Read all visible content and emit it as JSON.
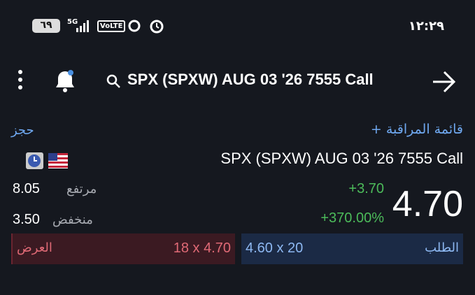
{
  "status_bar": {
    "battery": "٦٩",
    "network": "5G",
    "volte": "VoLTE",
    "time": "١٢:٢٩"
  },
  "header": {
    "title": "SPX (SPXW) AUG 03 '26 7555 Call"
  },
  "actions": {
    "watchlist": "+ قائمة المراقبة",
    "book": "حجز"
  },
  "quote": {
    "name": "SPX (SPXW) AUG 03 '26 7555 Call",
    "last": "4.70",
    "change": "+3.70",
    "change_pct": "+370.00%",
    "high_label": "مرتفع",
    "high": "8.05",
    "low_label": "منخفض",
    "low": "3.50"
  },
  "bid": {
    "label": "الطلب",
    "text": "4.60 x 20"
  },
  "ask": {
    "label": "العرض",
    "text": "18 x 4.70"
  }
}
